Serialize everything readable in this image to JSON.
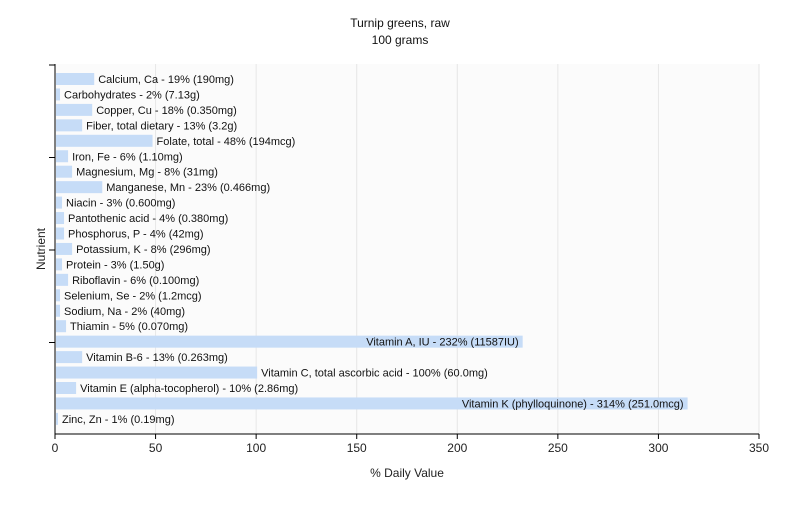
{
  "chart_data": {
    "type": "bar",
    "orientation": "horizontal",
    "title": "Turnip greens, raw",
    "subtitle": "100 grams",
    "xlabel": "% Daily Value",
    "ylabel": "Nutrient",
    "xlim": [
      0,
      350
    ],
    "xticks": [
      0,
      50,
      100,
      150,
      200,
      250,
      300,
      350
    ],
    "grid": true,
    "bar_color": "#c6dcf7",
    "categories": [
      "Calcium, Ca",
      "Carbohydrates",
      "Copper, Cu",
      "Fiber, total dietary",
      "Folate, total",
      "Iron, Fe",
      "Magnesium, Mg",
      "Manganese, Mn",
      "Niacin",
      "Pantothenic acid",
      "Phosphorus, P",
      "Potassium, K",
      "Protein",
      "Riboflavin",
      "Selenium, Se",
      "Sodium, Na",
      "Thiamin",
      "Vitamin A, IU",
      "Vitamin B-6",
      "Vitamin C, total ascorbic acid",
      "Vitamin E (alpha-tocopherol)",
      "Vitamin K (phylloquinone)",
      "Zinc, Zn"
    ],
    "values": [
      19,
      2,
      18,
      13,
      48,
      6,
      8,
      23,
      3,
      4,
      4,
      8,
      3,
      6,
      2,
      2,
      5,
      232,
      13,
      100,
      10,
      314,
      1
    ],
    "labels": [
      "Calcium, Ca - 19% (190mg)",
      "Carbohydrates - 2% (7.13g)",
      "Copper, Cu - 18% (0.350mg)",
      "Fiber, total dietary - 13% (3.2g)",
      "Folate, total - 48% (194mcg)",
      "Iron, Fe - 6% (1.10mg)",
      "Magnesium, Mg - 8% (31mg)",
      "Manganese, Mn - 23% (0.466mg)",
      "Niacin - 3% (0.600mg)",
      "Pantothenic acid - 4% (0.380mg)",
      "Phosphorus, P - 4% (42mg)",
      "Potassium, K - 8% (296mg)",
      "Protein - 3% (1.50g)",
      "Riboflavin - 6% (0.100mg)",
      "Selenium, Se - 2% (1.2mcg)",
      "Sodium, Na - 2% (40mg)",
      "Thiamin - 5% (0.070mg)",
      "Vitamin A, IU - 232% (11587IU)",
      "Vitamin B-6 - 13% (0.263mg)",
      "Vitamin C, total ascorbic acid - 100% (60.0mg)",
      "Vitamin E (alpha-tocopherol) - 10% (2.86mg)",
      "Vitamin K (phylloquinone) - 314% (251.0mcg)",
      "Zinc, Zn - 1% (0.19mg)"
    ]
  }
}
